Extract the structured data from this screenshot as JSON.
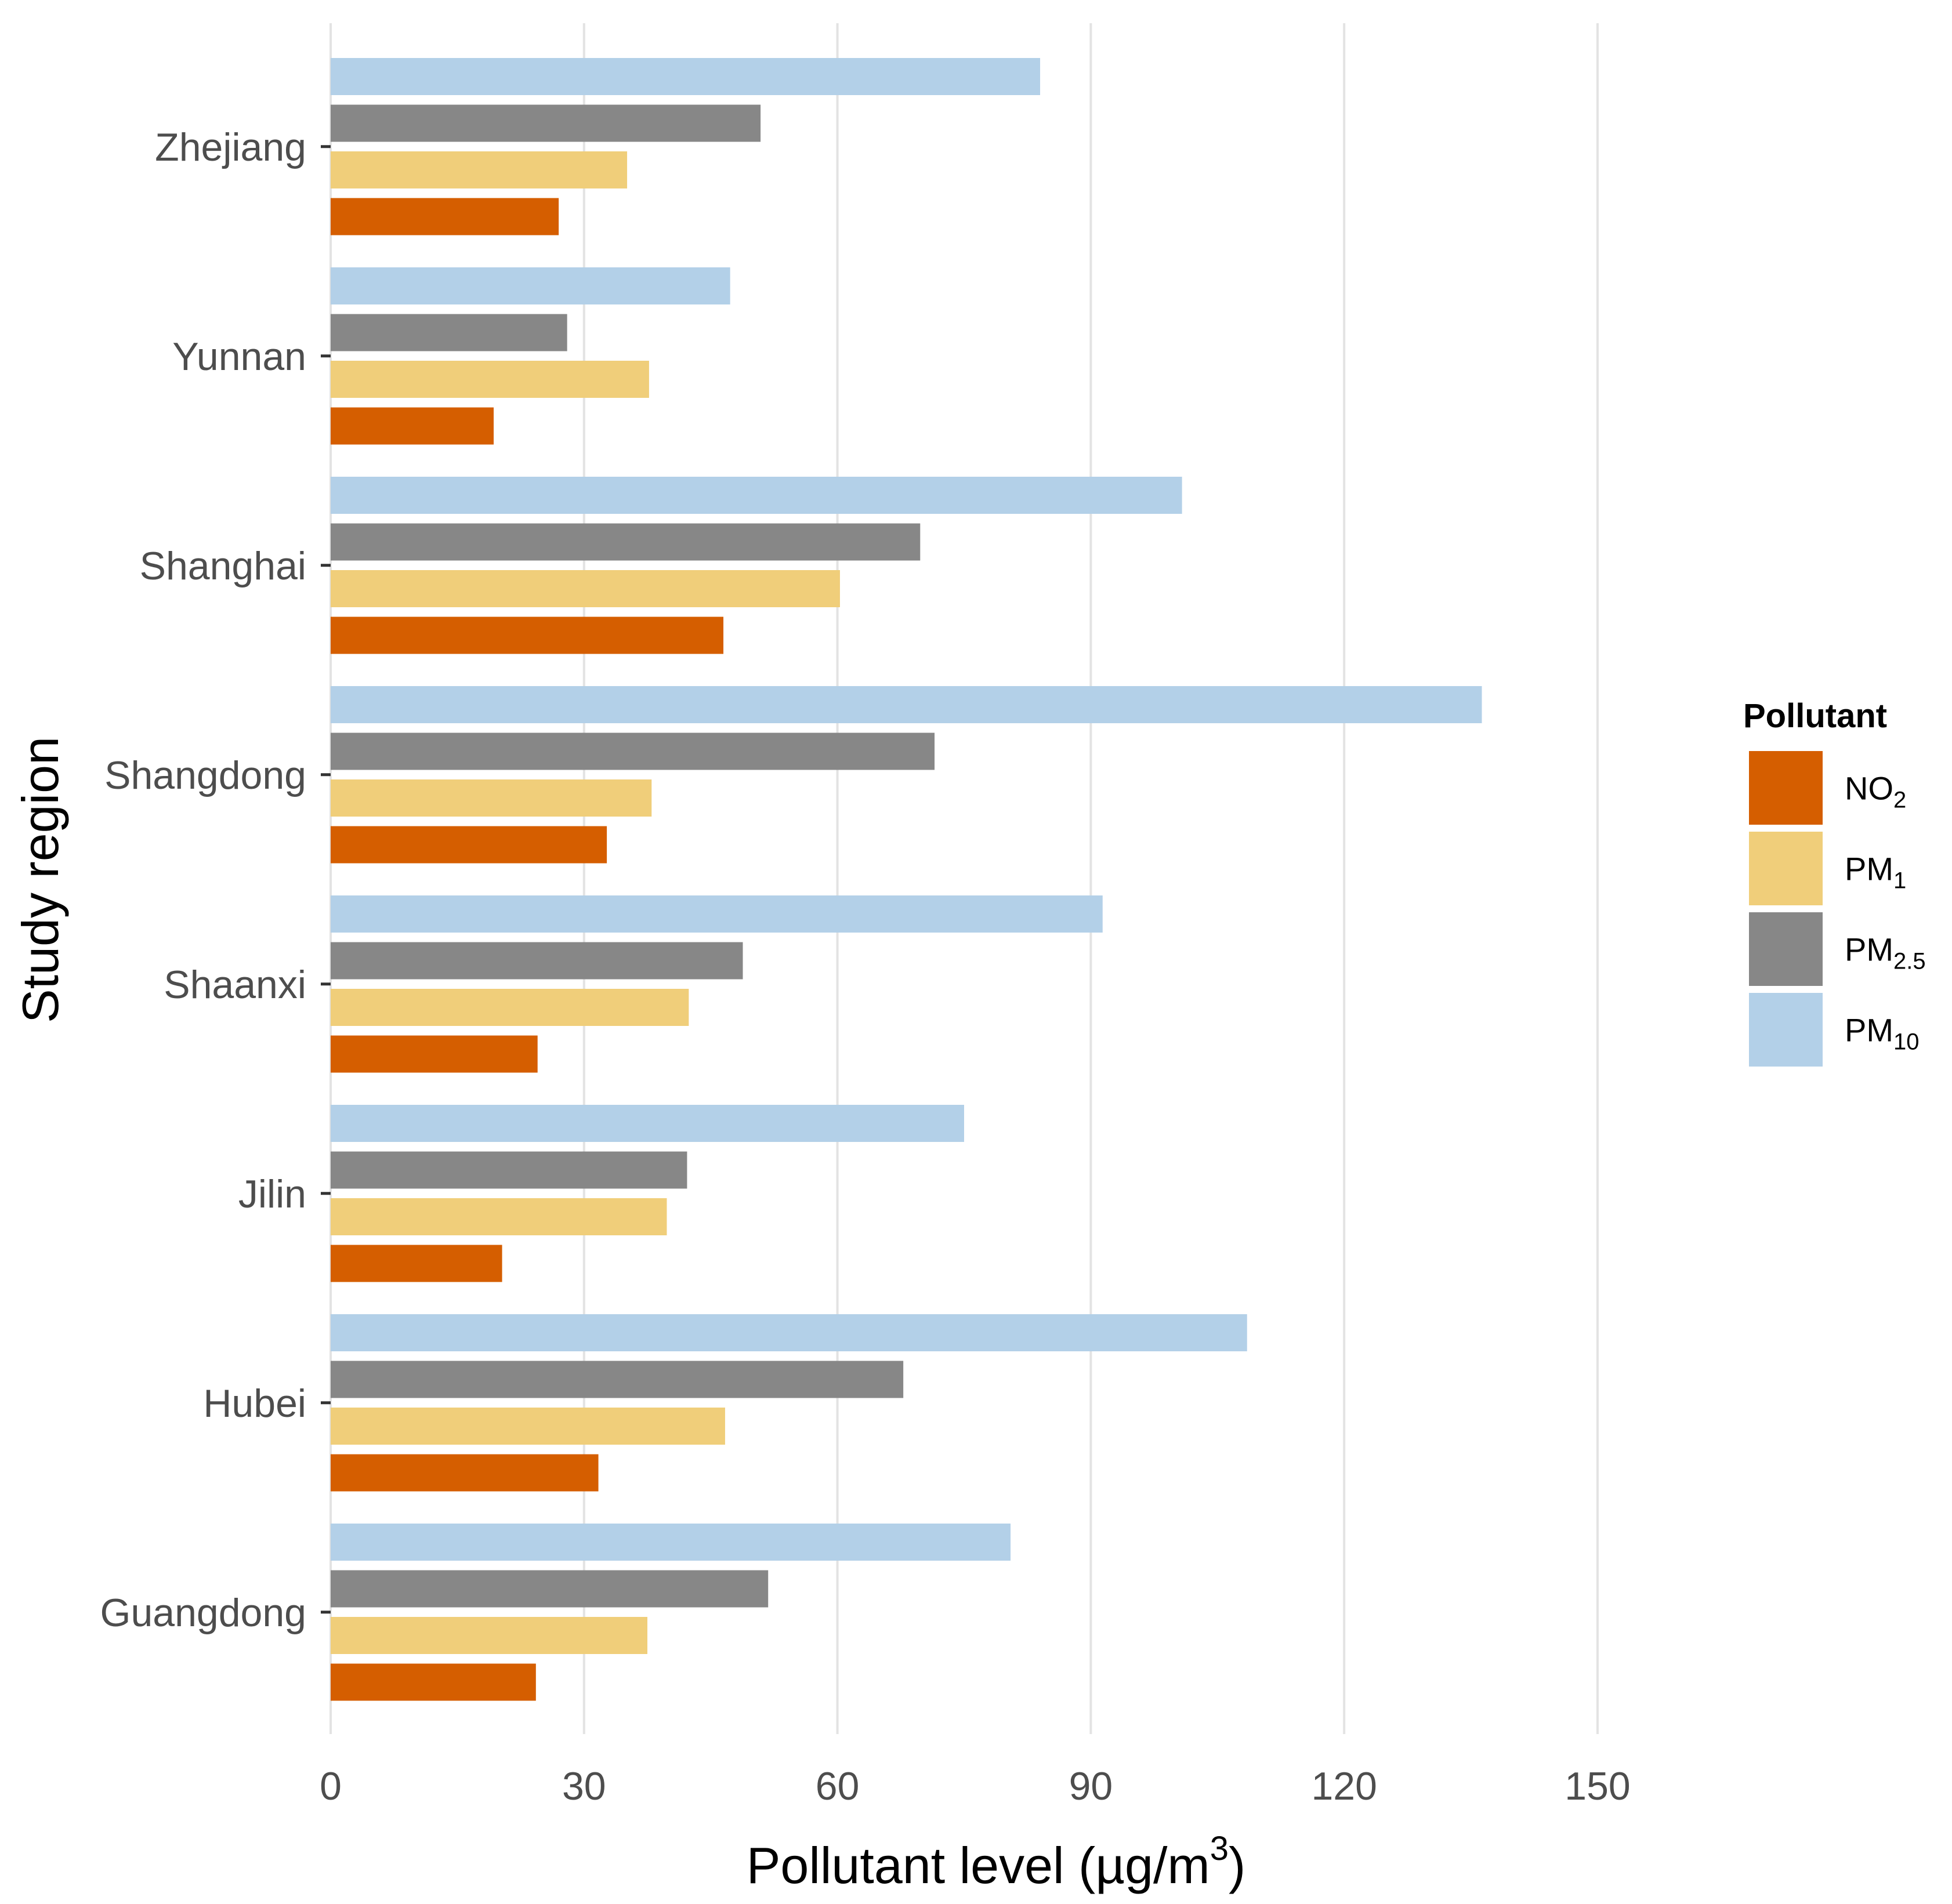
{
  "chart_data": {
    "type": "bar",
    "orientation": "horizontal",
    "xlabel": "Pollutant level (µg/m",
    "xlabel_sup": "3",
    "xlabel_close": ")",
    "ylabel": "Study region",
    "xlim": [
      0,
      150
    ],
    "xticks": [
      0,
      30,
      60,
      90,
      120,
      150
    ],
    "grid": true,
    "categories": [
      "Zhejiang",
      "Yunnan",
      "Shanghai",
      "Shangdong",
      "Shaanxi",
      "Jilin",
      "Hubei",
      "Guangdong"
    ],
    "series": [
      {
        "name": "NO2",
        "label_main": "NO",
        "label_sub": "2",
        "color": "#D55E00",
        "values": [
          27,
          19.3,
          46.5,
          32.7,
          24.5,
          20.3,
          31.7,
          24.3
        ]
      },
      {
        "name": "PM1",
        "label_main": "PM",
        "label_sub": "1",
        "color": "#F0CE7A",
        "values": [
          35.1,
          37.7,
          60.3,
          38,
          42.4,
          39.8,
          46.7,
          37.5
        ]
      },
      {
        "name": "PM2.5",
        "label_main": "PM",
        "label_sub": "2.5",
        "color": "#878787",
        "values": [
          50.9,
          28,
          69.8,
          71.5,
          48.8,
          42.2,
          67.8,
          51.8
        ]
      },
      {
        "name": "PM10",
        "label_main": "PM",
        "label_sub": "10",
        "color": "#B3D0E8",
        "values": [
          84,
          47.3,
          100.8,
          136.3,
          91.4,
          75,
          108.5,
          80.5
        ]
      }
    ],
    "legend": {
      "title": "Pollutant",
      "position": "right"
    }
  }
}
